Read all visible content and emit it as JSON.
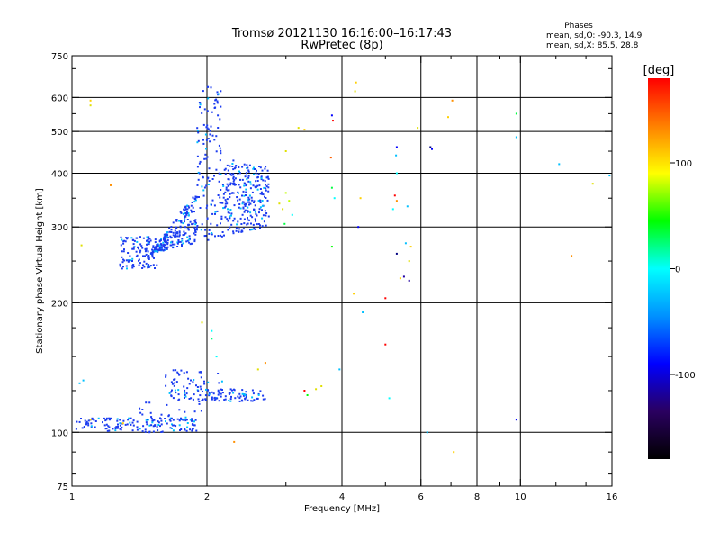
{
  "header": {
    "title": "Tromsø 20121130 16:16:00–16:17:43",
    "subtitle": "RwPretec (8p)"
  },
  "stats": {
    "label": "Phases",
    "line_o": "mean, sd,O: -90.3, 14.9",
    "line_x": "mean, sd,X:  85.5, 28.8"
  },
  "chart_data": {
    "type": "scatter",
    "xlabel": "Frequency [MHz]",
    "ylabel": "Stationary phase Virtual Height [km]",
    "x_scale": "log",
    "y_scale": "log",
    "xlim": [
      1,
      16
    ],
    "ylim": [
      75,
      750
    ],
    "grid": true,
    "x_ticks": [
      1,
      2,
      4,
      6,
      8,
      10,
      16
    ],
    "y_ticks": [
      75,
      100,
      200,
      300,
      400,
      500,
      600,
      750
    ],
    "x_grid_lines": [
      2,
      4,
      6,
      8,
      10
    ],
    "y_grid_lines": [
      100,
      200,
      300,
      400,
      500,
      600
    ],
    "colorbar": {
      "label": "[deg]",
      "range": [
        -180,
        180
      ],
      "ticks": [
        100,
        0,
        -100
      ],
      "colors": [
        "#000000",
        "#2a0060",
        "#0000ff",
        "#0090ff",
        "#00ffff",
        "#00ff00",
        "#ffff00",
        "#ff8000",
        "#ff0000"
      ]
    },
    "clusters": [
      {
        "name": "O",
        "phase": -100,
        "color": "#1c3cf0",
        "count": 650,
        "f": [
          1.5,
          2.75
        ],
        "h": [
          260,
          640
        ]
      },
      {
        "name": "O",
        "phase": -100,
        "color": "#1c3cf0",
        "count": 120,
        "f": [
          1.28,
          1.55
        ],
        "h": [
          240,
          285
        ]
      },
      {
        "name": "O",
        "phase": -100,
        "color": "#1c3cf0",
        "count": 160,
        "f": [
          1.02,
          1.9
        ],
        "h": [
          100,
          108
        ]
      },
      {
        "name": "O",
        "phase": -100,
        "color": "#1c3cf0",
        "count": 110,
        "f": [
          1.65,
          2.7
        ],
        "h": [
          118,
          126
        ]
      },
      {
        "name": "O",
        "phase": -100,
        "color": "#1c3cf0",
        "count": 40,
        "f": [
          1.6,
          2.2
        ],
        "h": [
          126,
          140
        ]
      },
      {
        "name": "O",
        "phase": -100,
        "color": "#1c3cf0",
        "count": 20,
        "f": [
          1.4,
          2.0
        ],
        "h": [
          106,
          118
        ]
      }
    ],
    "scatter_points": [
      {
        "x": 1.1,
        "y": 590,
        "c": "#ffd000"
      },
      {
        "x": 1.1,
        "y": 575,
        "c": "#e0e000"
      },
      {
        "x": 1.22,
        "y": 375,
        "c": "#ff9000"
      },
      {
        "x": 1.05,
        "y": 272,
        "c": "#e0e000"
      },
      {
        "x": 1.06,
        "y": 132,
        "c": "#00c0ff"
      },
      {
        "x": 1.04,
        "y": 130,
        "c": "#00c0ff"
      },
      {
        "x": 1.3,
        "y": 105,
        "c": "#ffd000"
      },
      {
        "x": 1.1,
        "y": 107,
        "c": "#ffd000"
      },
      {
        "x": 1.95,
        "y": 180,
        "c": "#e0e000"
      },
      {
        "x": 2.05,
        "y": 172,
        "c": "#00ffff"
      },
      {
        "x": 2.1,
        "y": 150,
        "c": "#00ffff"
      },
      {
        "x": 2.05,
        "y": 165,
        "c": "#00ff80"
      },
      {
        "x": 2.3,
        "y": 95,
        "c": "#ff9000"
      },
      {
        "x": 2.6,
        "y": 140,
        "c": "#e0e000"
      },
      {
        "x": 2.7,
        "y": 145,
        "c": "#ff9000"
      },
      {
        "x": 3.0,
        "y": 450,
        "c": "#e0e000"
      },
      {
        "x": 2.9,
        "y": 340,
        "c": "#e0e000"
      },
      {
        "x": 3.0,
        "y": 360,
        "c": "#c0ff00"
      },
      {
        "x": 2.95,
        "y": 330,
        "c": "#e0e000"
      },
      {
        "x": 3.05,
        "y": 345,
        "c": "#c0ff00"
      },
      {
        "x": 2.98,
        "y": 305,
        "c": "#00ff40"
      },
      {
        "x": 3.1,
        "y": 320,
        "c": "#00ffff"
      },
      {
        "x": 3.2,
        "y": 510,
        "c": "#e0e000"
      },
      {
        "x": 3.3,
        "y": 125,
        "c": "#ff0000"
      },
      {
        "x": 3.35,
        "y": 122,
        "c": "#00ff00"
      },
      {
        "x": 3.5,
        "y": 126,
        "c": "#e0e000"
      },
      {
        "x": 3.6,
        "y": 128,
        "c": "#e0e000"
      },
      {
        "x": 3.3,
        "y": 505,
        "c": "#ffd000"
      },
      {
        "x": 3.8,
        "y": 545,
        "c": "#0000ff"
      },
      {
        "x": 3.82,
        "y": 530,
        "c": "#ff0000"
      },
      {
        "x": 3.78,
        "y": 435,
        "c": "#ff6000"
      },
      {
        "x": 3.8,
        "y": 370,
        "c": "#00ff40"
      },
      {
        "x": 3.85,
        "y": 350,
        "c": "#00ffff"
      },
      {
        "x": 3.8,
        "y": 270,
        "c": "#00ff00"
      },
      {
        "x": 3.95,
        "y": 140,
        "c": "#00c0ff"
      },
      {
        "x": 4.3,
        "y": 650,
        "c": "#ffd000"
      },
      {
        "x": 4.28,
        "y": 620,
        "c": "#e0e000"
      },
      {
        "x": 4.4,
        "y": 350,
        "c": "#ffd000"
      },
      {
        "x": 4.35,
        "y": 300,
        "c": "#0000ff"
      },
      {
        "x": 4.25,
        "y": 210,
        "c": "#ffd000"
      },
      {
        "x": 4.45,
        "y": 190,
        "c": "#00c0ff"
      },
      {
        "x": 5.0,
        "y": 205,
        "c": "#ff0000"
      },
      {
        "x": 5.0,
        "y": 160,
        "c": "#ff0000"
      },
      {
        "x": 5.1,
        "y": 120,
        "c": "#00ffff"
      },
      {
        "x": 5.3,
        "y": 460,
        "c": "#0000ff"
      },
      {
        "x": 5.28,
        "y": 440,
        "c": "#00c0ff"
      },
      {
        "x": 5.3,
        "y": 400,
        "c": "#00ffff"
      },
      {
        "x": 5.25,
        "y": 355,
        "c": "#ff0000"
      },
      {
        "x": 5.3,
        "y": 345,
        "c": "#ff9000"
      },
      {
        "x": 5.2,
        "y": 330,
        "c": "#00ffff"
      },
      {
        "x": 5.3,
        "y": 260,
        "c": "#000080"
      },
      {
        "x": 5.5,
        "y": 230,
        "c": "#2000a0"
      },
      {
        "x": 5.4,
        "y": 228,
        "c": "#ffd000"
      },
      {
        "x": 5.7,
        "y": 270,
        "c": "#ffd000"
      },
      {
        "x": 5.65,
        "y": 250,
        "c": "#e0e000"
      },
      {
        "x": 5.6,
        "y": 335,
        "c": "#00c0ff"
      },
      {
        "x": 5.55,
        "y": 275,
        "c": "#00c0ff"
      },
      {
        "x": 5.65,
        "y": 225,
        "c": "#2000a0"
      },
      {
        "x": 5.9,
        "y": 510,
        "c": "#e0e000"
      },
      {
        "x": 6.3,
        "y": 460,
        "c": "#000080"
      },
      {
        "x": 6.35,
        "y": 455,
        "c": "#0000ff"
      },
      {
        "x": 6.2,
        "y": 100,
        "c": "#00c0ff"
      },
      {
        "x": 6.9,
        "y": 540,
        "c": "#ffd000"
      },
      {
        "x": 7.05,
        "y": 590,
        "c": "#ff9000"
      },
      {
        "x": 7.1,
        "y": 90,
        "c": "#ffd000"
      },
      {
        "x": 9.8,
        "y": 550,
        "c": "#00ff40"
      },
      {
        "x": 9.8,
        "y": 485,
        "c": "#00c0ff"
      },
      {
        "x": 9.8,
        "y": 107,
        "c": "#0000ff"
      },
      {
        "x": 12.2,
        "y": 420,
        "c": "#00c0ff"
      },
      {
        "x": 13.0,
        "y": 257,
        "c": "#ff9000"
      },
      {
        "x": 14.5,
        "y": 378,
        "c": "#e0e000"
      },
      {
        "x": 15.8,
        "y": 395,
        "c": "#00c0ff"
      }
    ]
  }
}
